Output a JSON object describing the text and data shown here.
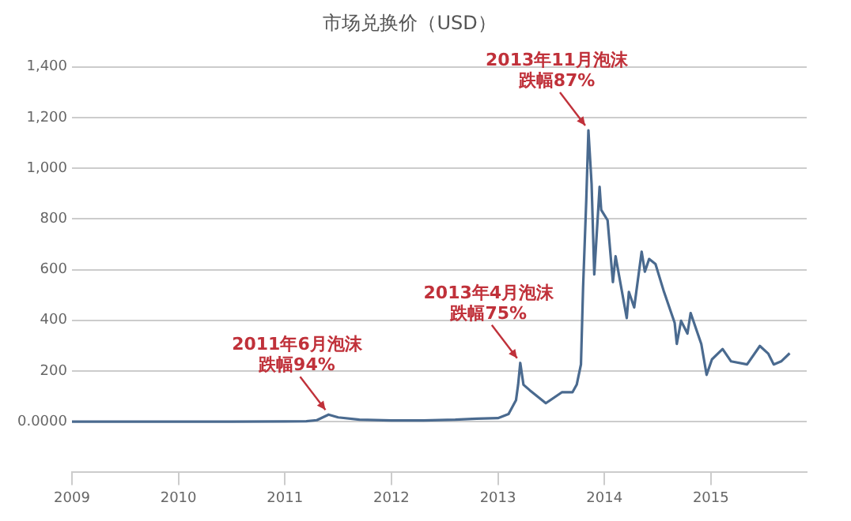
{
  "chart_data": {
    "type": "line",
    "title": "市场兑换价（USD）",
    "x": [
      2009,
      2010,
      2010.5,
      2011,
      2011.2,
      2011.3,
      2011.41,
      2011.5,
      2011.7,
      2012,
      2012.3,
      2012.6,
      2012.8,
      2013,
      2013.1,
      2013.17,
      2013.19,
      2013.21,
      2013.24,
      2013.3,
      2013.45,
      2013.6,
      2013.7,
      2013.74,
      2013.78,
      2013.8,
      2013.83,
      2013.85,
      2013.88,
      2013.905,
      2013.955,
      2013.97,
      2014.03,
      2014.08,
      2014.105,
      2014.21,
      2014.23,
      2014.28,
      2014.35,
      2014.38,
      2014.42,
      2014.48,
      2014.56,
      2014.66,
      2014.68,
      2014.72,
      2014.78,
      2014.81,
      2014.91,
      2014.96,
      2015.01,
      2015.11,
      2015.19,
      2015.34,
      2015.46,
      2015.54,
      2015.59,
      2015.66,
      2015.74
    ],
    "series": [
      {
        "color": "#4a6a8f",
        "values": [
          0,
          0,
          0,
          1,
          2,
          6,
          28,
          17,
          8,
          5,
          5,
          8,
          12,
          14,
          30,
          85,
          146,
          232,
          146,
          124,
          73,
          116,
          116,
          146,
          226,
          530,
          876,
          1150,
          937,
          581,
          927,
          836,
          795,
          551,
          653,
          409,
          512,
          451,
          671,
          592,
          642,
          622,
          512,
          390,
          307,
          398,
          348,
          429,
          307,
          185,
          246,
          287,
          238,
          226,
          299,
          268,
          226,
          238,
          270
        ]
      }
    ],
    "xlim": [
      2009,
      2015.9
    ],
    "xticks": [
      2009,
      2010,
      2011,
      2012,
      2013,
      2014,
      2015
    ],
    "ylim": [
      -200,
      1400
    ],
    "yticks": [
      {
        "value": 0,
        "label": "0.0000"
      },
      200,
      400,
      600,
      800,
      {
        "value": 1000,
        "label": "1,000"
      },
      {
        "value": 1200,
        "label": "1,200"
      },
      {
        "value": 1400,
        "label": "1,400"
      }
    ],
    "grid": "y",
    "legend": false,
    "marker": "none",
    "line_style": "solid",
    "annotations": [
      {
        "text": "2011年6月泡沫跌幅94%",
        "x": 2011.41,
        "y": 28
      },
      {
        "text": "2013年4月泡沫跌幅75%",
        "x": 2013.21,
        "y": 232
      },
      {
        "text": "2013年11月泡沫跌幅87%",
        "x": 2013.85,
        "y": 1150
      }
    ]
  }
}
